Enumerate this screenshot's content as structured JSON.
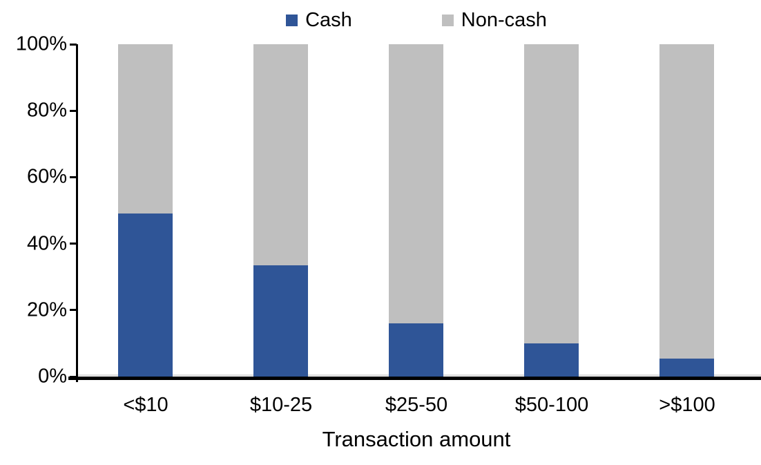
{
  "chart_data": {
    "type": "bar",
    "stacked": true,
    "percent_stacked": true,
    "title": "",
    "xlabel": "Transaction amount",
    "ylabel": "",
    "categories": [
      "<$10",
      "$10-25",
      "$25-50",
      "$50-100",
      ">$100"
    ],
    "series": [
      {
        "name": "Cash",
        "color": "#2F5597",
        "values": [
          49,
          33.5,
          16,
          10,
          5.5
        ]
      },
      {
        "name": "Non-cash",
        "color": "#BFBFBF",
        "values": [
          51,
          66.5,
          84,
          90,
          94.5
        ]
      }
    ],
    "y_ticks": [
      "0%",
      "20%",
      "40%",
      "60%",
      "80%",
      "100%"
    ],
    "ylim": [
      0,
      100
    ],
    "legend_position": "top-center",
    "grid": false
  },
  "colors": {
    "axis": "#000000",
    "baseline_gridline": "#D9D9D9",
    "background": "#FFFFFF",
    "text": "#000000"
  }
}
